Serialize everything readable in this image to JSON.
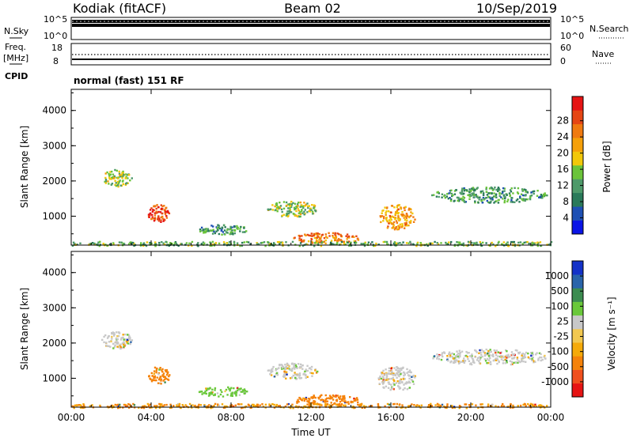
{
  "header": {
    "station": "Kodiak (fitACF)",
    "beam": "Beam 02",
    "date": "10/Sep/2019"
  },
  "params": {
    "nsky_label": "N.Sky",
    "nsky_ticks": [
      "10^5",
      "10^0"
    ],
    "nsearch_label": "N.Search",
    "nsearch_ticks": [
      "10^5",
      "10^0"
    ],
    "freq_label": "Freq.",
    "freq_unit": "[MHz]",
    "freq_ticks": [
      "18",
      "8"
    ],
    "nave_label": "Nave",
    "nave_ticks": [
      "60",
      "0"
    ],
    "cpid_label": "CPID",
    "cpid_value": "normal (fast) 151 RF"
  },
  "colors": {
    "power": [
      "#0a14e6",
      "#1e50b4",
      "#2a7a5a",
      "#4e9a6a",
      "#6bc43a",
      "#f2c80a",
      "#f5a00a",
      "#f07a10",
      "#e64614",
      "#e61414"
    ],
    "velocity": [
      "#e61414",
      "#f0501e",
      "#f5820a",
      "#f5aa0a",
      "#f2c850",
      "#c8c8c8",
      "#6ac83a",
      "#3c8c50",
      "#2a64aa",
      "#1432c8"
    ]
  },
  "chart_data": [
    {
      "type": "heatmap",
      "title": "Power",
      "xlabel": "",
      "ylabel": "Slant Range [km]",
      "x_ticks": [
        "00:00",
        "04:00",
        "08:00",
        "12:00",
        "16:00",
        "20:00",
        "00:00"
      ],
      "y_ticks": [
        "1000",
        "2000",
        "3000",
        "4000"
      ],
      "xlim": [
        0,
        24
      ],
      "ylim": [
        180,
        4600
      ],
      "colorbar": {
        "label": "Power [dB]",
        "ticks": [
          "4",
          "8",
          "12",
          "16",
          "20",
          "24",
          "28"
        ],
        "range": [
          0,
          30
        ]
      },
      "features": [
        {
          "t": [
            1.5,
            3.0
          ],
          "range_km": [
            1850,
            2350
          ],
          "level_db": 14
        },
        {
          "t": [
            3.8,
            4.9
          ],
          "range_km": [
            850,
            1350
          ],
          "level_db": 26
        },
        {
          "t": [
            6.3,
            8.8
          ],
          "range_km": [
            500,
            780
          ],
          "level_db": 10
        },
        {
          "t": [
            9.8,
            12.3
          ],
          "range_km": [
            1000,
            1450
          ],
          "level_db": 14
        },
        {
          "t": [
            11.0,
            14.5
          ],
          "range_km": [
            250,
            550
          ],
          "level_db": 22
        },
        {
          "t": [
            15.3,
            17.2
          ],
          "range_km": [
            650,
            1350
          ],
          "level_db": 20
        },
        {
          "t": [
            18.0,
            23.8
          ],
          "range_km": [
            1400,
            1850
          ],
          "level_db": 10
        },
        {
          "t": [
            0.0,
            24.0
          ],
          "range_km": [
            180,
            300
          ],
          "level_db": 12
        }
      ]
    },
    {
      "type": "heatmap",
      "title": "Velocity",
      "xlabel": "Time UT",
      "ylabel": "Slant Range [km]",
      "x_ticks": [
        "00:00",
        "04:00",
        "08:00",
        "12:00",
        "16:00",
        "20:00",
        "00:00"
      ],
      "y_ticks": [
        "1000",
        "2000",
        "3000",
        "4000"
      ],
      "xlim": [
        0,
        24
      ],
      "ylim": [
        180,
        4600
      ],
      "colorbar": {
        "label": "Velocity [m s⁻¹]",
        "ticks": [
          "1000",
          "500",
          "100",
          "25",
          "-25",
          "-100",
          "-500",
          "-1000"
        ],
        "range": [
          -1000,
          1000
        ]
      },
      "features": [
        {
          "t": [
            1.5,
            3.0
          ],
          "range_km": [
            1850,
            2350
          ],
          "velocity_ms": 0
        },
        {
          "t": [
            3.8,
            4.9
          ],
          "range_km": [
            850,
            1350
          ],
          "velocity_ms": -400
        },
        {
          "t": [
            6.3,
            8.8
          ],
          "range_km": [
            500,
            780
          ],
          "velocity_ms": 50
        },
        {
          "t": [
            9.8,
            12.3
          ],
          "range_km": [
            1000,
            1450
          ],
          "velocity_ms": 0
        },
        {
          "t": [
            11.0,
            14.5
          ],
          "range_km": [
            250,
            550
          ],
          "velocity_ms": -150
        },
        {
          "t": [
            15.3,
            17.2
          ],
          "range_km": [
            650,
            1350
          ],
          "velocity_ms": 0
        },
        {
          "t": [
            18.0,
            23.8
          ],
          "range_km": [
            1400,
            1850
          ],
          "velocity_ms": 0
        },
        {
          "t": [
            0.0,
            24.0
          ],
          "range_km": [
            180,
            300
          ],
          "velocity_ms": -100
        }
      ]
    }
  ]
}
